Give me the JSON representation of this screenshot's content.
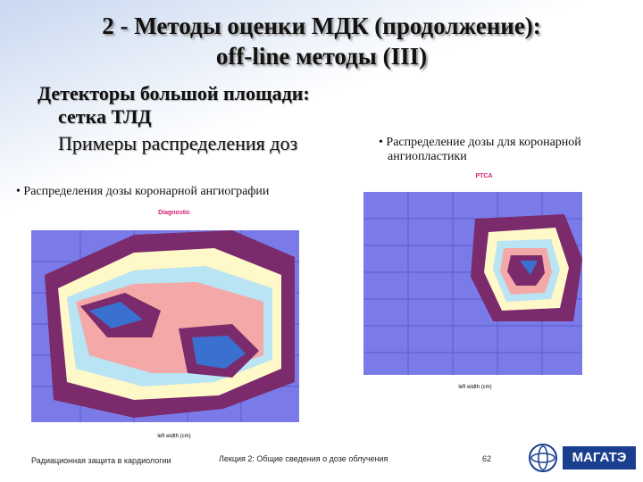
{
  "header": {
    "title_line1": "2 - Методы оценки МДК (продолжение):",
    "title_line2": "off-line методы (III)"
  },
  "subtitle": {
    "lines": [
      "Детекторы большой площади:",
      "сетка ТЛД",
      "Примеры распределения доз"
    ]
  },
  "bullets": [
    "Распределения дозы коронарной ангиографии",
    "Распределение дозы для коронарной ангиопластики"
  ],
  "figures": [
    {
      "title": "Diagnostic",
      "x_label": "left width (cm)"
    },
    {
      "title": "PTCA",
      "x_label": "left width (cm)"
    }
  ],
  "footer": {
    "course": "Радиационная защита в кардиологии",
    "lecture": "Лекция 2: Общие сведения о дозе облучения",
    "page": "62",
    "logo": "МАГАТЭ"
  }
}
